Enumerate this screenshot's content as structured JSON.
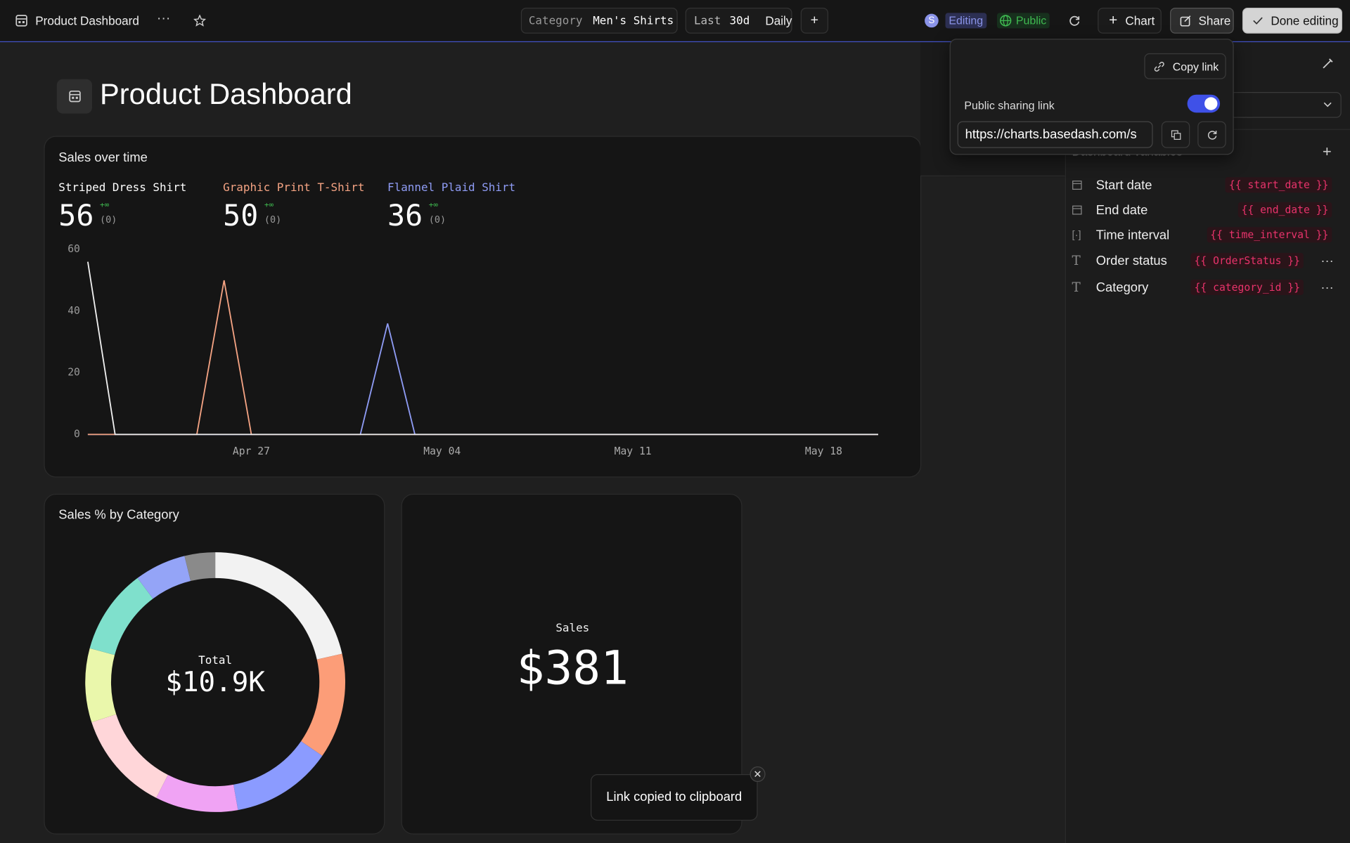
{
  "topbar": {
    "title": "Product Dashboard",
    "category_label": "Category",
    "category_value": "Men's Shirts",
    "range_label": "Last",
    "range_value": "30d",
    "interval": "Daily",
    "user_initial": "S",
    "status": "Editing",
    "visibility": "Public",
    "buttons": [
      "Chart",
      "Share",
      "Done editing"
    ]
  },
  "share_popover": {
    "copy_link": "Copy link",
    "label": "Public sharing link",
    "url": "https://charts.basedash.com/s"
  },
  "page_title": "Product Dashboard",
  "chart_data": [
    {
      "type": "line",
      "title": "Sales over time",
      "categories": [
        null,
        null,
        null,
        null,
        null,
        null,
        "Apr 27",
        null,
        null,
        null,
        null,
        null,
        null,
        "May 04",
        null,
        null,
        null,
        null,
        null,
        null,
        "May 11",
        null,
        null,
        null,
        null,
        null,
        null,
        "May 18",
        null,
        null
      ],
      "ylim": [
        0,
        60
      ],
      "yticks": [
        0,
        20,
        40,
        60
      ],
      "grid": false,
      "series": [
        {
          "name": "Striped Dress Shirt",
          "color": "#f0f0f0",
          "total": 56,
          "change": "+∞",
          "previous": "(0)",
          "values": [
            56,
            0,
            0,
            0,
            0,
            0,
            0,
            0,
            0,
            0,
            0,
            0,
            0,
            0,
            0,
            0,
            0,
            0,
            0,
            0,
            0,
            0,
            0,
            0,
            0,
            0,
            0,
            0,
            0,
            0
          ]
        },
        {
          "name": "Graphic Print T-Shirt",
          "color": "#f4a383",
          "total": 50,
          "change": "+∞",
          "previous": "(0)",
          "values": [
            0,
            0,
            0,
            0,
            0,
            50,
            0,
            0,
            0,
            0,
            0,
            0,
            0,
            0,
            0,
            0,
            0,
            0,
            0,
            0,
            0,
            0,
            0,
            0,
            0,
            0,
            0,
            0,
            0,
            0
          ]
        },
        {
          "name": "Flannel Plaid Shirt",
          "color": "#8f9cf5",
          "total": 36,
          "change": "+∞",
          "previous": "(0)",
          "values": [
            0,
            0,
            0,
            0,
            0,
            0,
            0,
            0,
            0,
            0,
            0,
            36,
            0,
            0,
            0,
            0,
            0,
            0,
            0,
            0,
            0,
            0,
            0,
            0,
            0,
            0,
            0,
            0,
            0,
            0
          ]
        }
      ]
    },
    {
      "type": "pie",
      "title": "Sales % by Category",
      "donut": true,
      "center_label": "Total",
      "center_value": "$10.9K",
      "values": [
        21.5,
        13.1,
        12.6,
        10.3,
        12.5,
        9.2,
        10.6,
        6.4,
        3.8
      ],
      "colors": [
        "#f2f2f2",
        "#fc9d78",
        "#8b9bff",
        "#f0a3f4",
        "#ffd6d9",
        "#eaf7ab",
        "#7fe0cc",
        "#94a4f7",
        "#8a8a8a"
      ]
    }
  ],
  "kpi": {
    "label": "Sales",
    "value": "$381"
  },
  "sidebar": {
    "section": "Dashboard variables",
    "variables": [
      {
        "name": "Start date",
        "token": "{{ start_date }}"
      },
      {
        "name": "End date",
        "token": "{{ end_date }}"
      },
      {
        "name": "Time interval",
        "token": "{{ time_interval }}"
      },
      {
        "name": "Order status",
        "token": "{{ OrderStatus }}"
      },
      {
        "name": "Category",
        "token": "{{ category_id }}"
      }
    ]
  },
  "toast": "Link copied to clipboard"
}
